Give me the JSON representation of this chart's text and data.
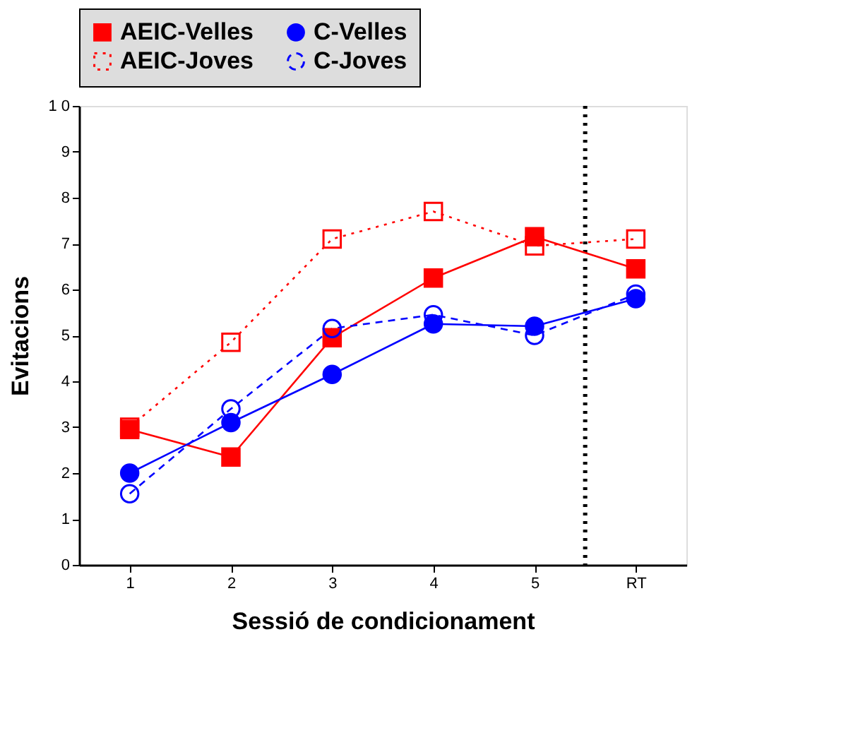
{
  "chart_data": {
    "type": "line",
    "xlabel": "Sessió de condicionament",
    "ylabel": "Evitacions",
    "x": [
      1,
      2,
      3,
      4,
      5,
      6
    ],
    "xlim": [
      0.5,
      6.5
    ],
    "xticks": [
      1,
      2,
      3,
      4,
      5,
      {
        "value": 6,
        "label": "RT"
      }
    ],
    "ylim": [
      0,
      10
    ],
    "yticks": [
      0,
      1,
      2,
      3,
      4,
      5,
      6,
      7,
      8,
      9,
      {
        "value": 10,
        "label": "1 0"
      }
    ],
    "grid": false,
    "legend": "top",
    "ref_lines": [
      {
        "axis": "x",
        "value": 5.5,
        "color": "#000000",
        "line_style": "dotted"
      }
    ],
    "series": [
      {
        "name": "AEIC-Velles",
        "color": "#ff0000",
        "marker": "square",
        "line_style": "solid",
        "values": [
          2.95,
          2.35,
          4.95,
          6.25,
          7.15,
          6.45
        ]
      },
      {
        "name": "C-Velles",
        "color": "#0000ff",
        "marker": "circle",
        "line_style": "solid",
        "values": [
          2.0,
          3.1,
          4.15,
          5.25,
          5.2,
          5.8
        ]
      },
      {
        "name": "AEIC-Joves",
        "color": "#ff0000",
        "marker": "square",
        "line_style": "dotted",
        "values": [
          3.0,
          4.85,
          7.1,
          7.7,
          6.95,
          7.1
        ]
      },
      {
        "name": "C-Joves",
        "color": "#0000ff",
        "marker": "circle",
        "line_style": "dashed",
        "values": [
          1.55,
          3.4,
          5.15,
          5.45,
          5.0,
          5.9
        ]
      }
    ]
  }
}
